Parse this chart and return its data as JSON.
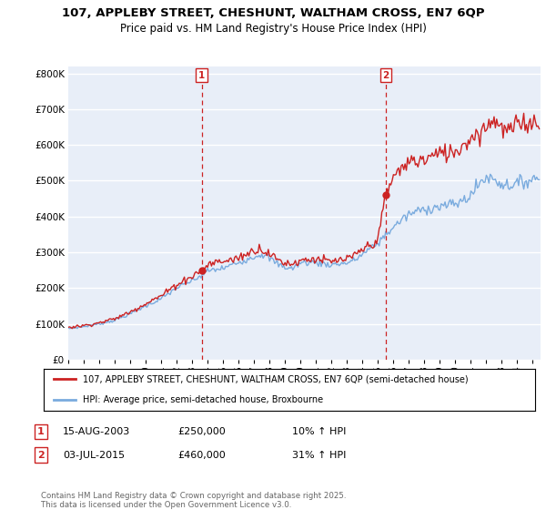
{
  "title": "107, APPLEBY STREET, CHESHUNT, WALTHAM CROSS, EN7 6QP",
  "subtitle": "Price paid vs. HM Land Registry's House Price Index (HPI)",
  "legend_line1": "107, APPLEBY STREET, CHESHUNT, WALTHAM CROSS, EN7 6QP (semi-detached house)",
  "legend_line2": "HPI: Average price, semi-detached house, Broxbourne",
  "annotation1_label": "1",
  "annotation1_date": "15-AUG-2003",
  "annotation1_price": "£250,000",
  "annotation1_hpi": "10% ↑ HPI",
  "annotation2_label": "2",
  "annotation2_date": "03-JUL-2015",
  "annotation2_price": "£460,000",
  "annotation2_hpi": "31% ↑ HPI",
  "sale1_year": 2003.62,
  "sale1_value": 250000,
  "sale2_year": 2015.5,
  "sale2_value": 460000,
  "vline1_x": 2003.62,
  "vline2_x": 2015.5,
  "ylim": [
    0,
    820000
  ],
  "xlim": [
    1995.0,
    2025.5
  ],
  "plot_bg_color": "#e8eef8",
  "grid_color": "#ffffff",
  "line_color_property": "#cc2222",
  "line_color_hpi": "#7aabde",
  "vline_color": "#cc2222",
  "footer": "Contains HM Land Registry data © Crown copyright and database right 2025.\nThis data is licensed under the Open Government Licence v3.0."
}
